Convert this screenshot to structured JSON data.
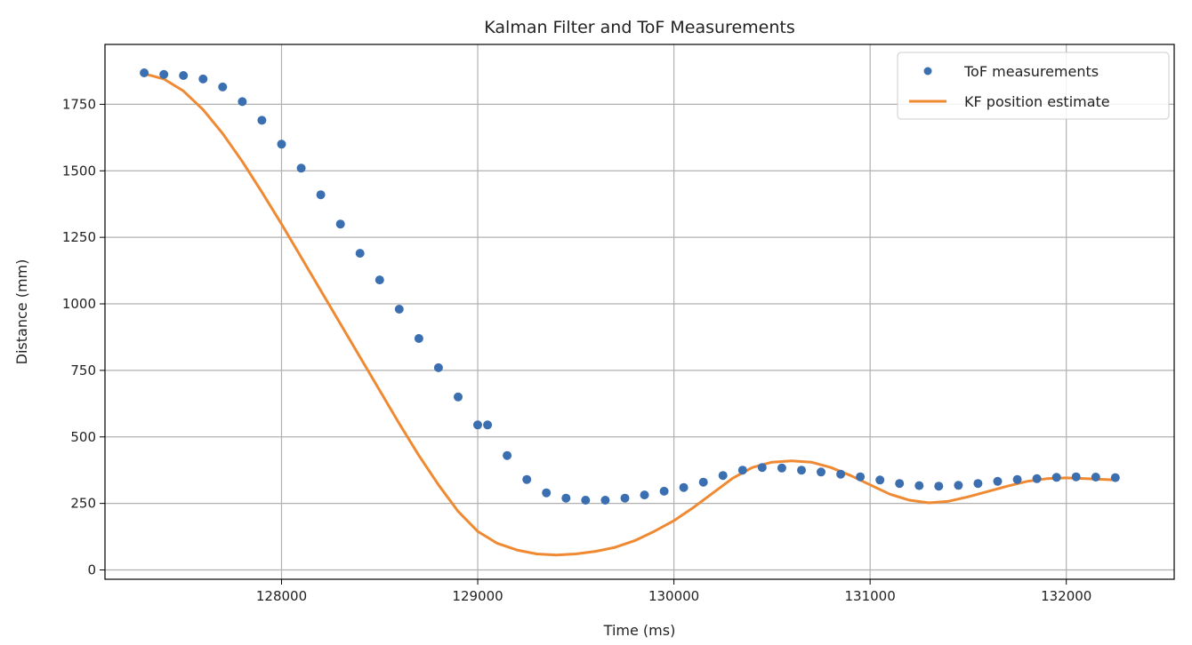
{
  "chart_data": {
    "type": "line",
    "title": "Kalman Filter and ToF Measurements",
    "xlabel": "Time (ms)",
    "ylabel": "Distance (mm)",
    "xlim": [
      127100,
      132550
    ],
    "ylim": [
      -35,
      1975
    ],
    "xticks": [
      128000,
      129000,
      130000,
      131000,
      132000
    ],
    "yticks": [
      0,
      250,
      500,
      750,
      1000,
      1250,
      1500,
      1750
    ],
    "grid": true,
    "legend_position": "upper-right",
    "series": [
      {
        "name": "ToF measurements",
        "style": "markers",
        "color": "#3b6fb0",
        "points_sampled": true,
        "x": [
          127300,
          127400,
          127500,
          127600,
          127700,
          127800,
          127900,
          128000,
          128100,
          128200,
          128300,
          128400,
          128500,
          128600,
          128700,
          128800,
          128900,
          129000,
          129050,
          129150,
          129250,
          129350,
          129450,
          129550,
          129650,
          129750,
          129850,
          129950,
          130050,
          130150,
          130250,
          130350,
          130450,
          130550,
          130650,
          130750,
          130850,
          130950,
          131050,
          131150,
          131250,
          131350,
          131450,
          131550,
          131650,
          131750,
          131850,
          131950,
          132050,
          132150,
          132250
        ],
        "y": [
          1868,
          1862,
          1858,
          1845,
          1815,
          1760,
          1690,
          1600,
          1510,
          1410,
          1300,
          1190,
          1090,
          980,
          870,
          760,
          650,
          545,
          545,
          430,
          340,
          290,
          270,
          262,
          262,
          270,
          282,
          296,
          310,
          330,
          355,
          375,
          385,
          383,
          375,
          368,
          360,
          350,
          338,
          325,
          317,
          315,
          318,
          325,
          333,
          340,
          343,
          348,
          350,
          349,
          347
        ],
        "values_sampled": true
      },
      {
        "name": "KF position estimate",
        "style": "line",
        "color": "#ef8a33",
        "points_sampled": true,
        "x": [
          127300,
          127400,
          127500,
          127600,
          127700,
          127800,
          127900,
          128000,
          128100,
          128200,
          128300,
          128400,
          128500,
          128600,
          128700,
          128800,
          128900,
          129000,
          129100,
          129200,
          129300,
          129400,
          129500,
          129600,
          129700,
          129800,
          129900,
          130000,
          130100,
          130200,
          130300,
          130400,
          130500,
          130600,
          130700,
          130800,
          130900,
          131000,
          131100,
          131200,
          131300,
          131400,
          131500,
          131600,
          131700,
          131800,
          131900,
          132000,
          132100,
          132200,
          132250
        ],
        "y": [
          1865,
          1845,
          1800,
          1730,
          1640,
          1535,
          1420,
          1300,
          1175,
          1050,
          925,
          800,
          675,
          550,
          430,
          320,
          220,
          145,
          100,
          75,
          60,
          56,
          60,
          70,
          85,
          110,
          145,
          185,
          235,
          290,
          345,
          385,
          405,
          410,
          405,
          385,
          355,
          320,
          285,
          262,
          252,
          258,
          275,
          295,
          315,
          333,
          343,
          346,
          343,
          340,
          338
        ],
        "values_sampled": true
      }
    ]
  }
}
